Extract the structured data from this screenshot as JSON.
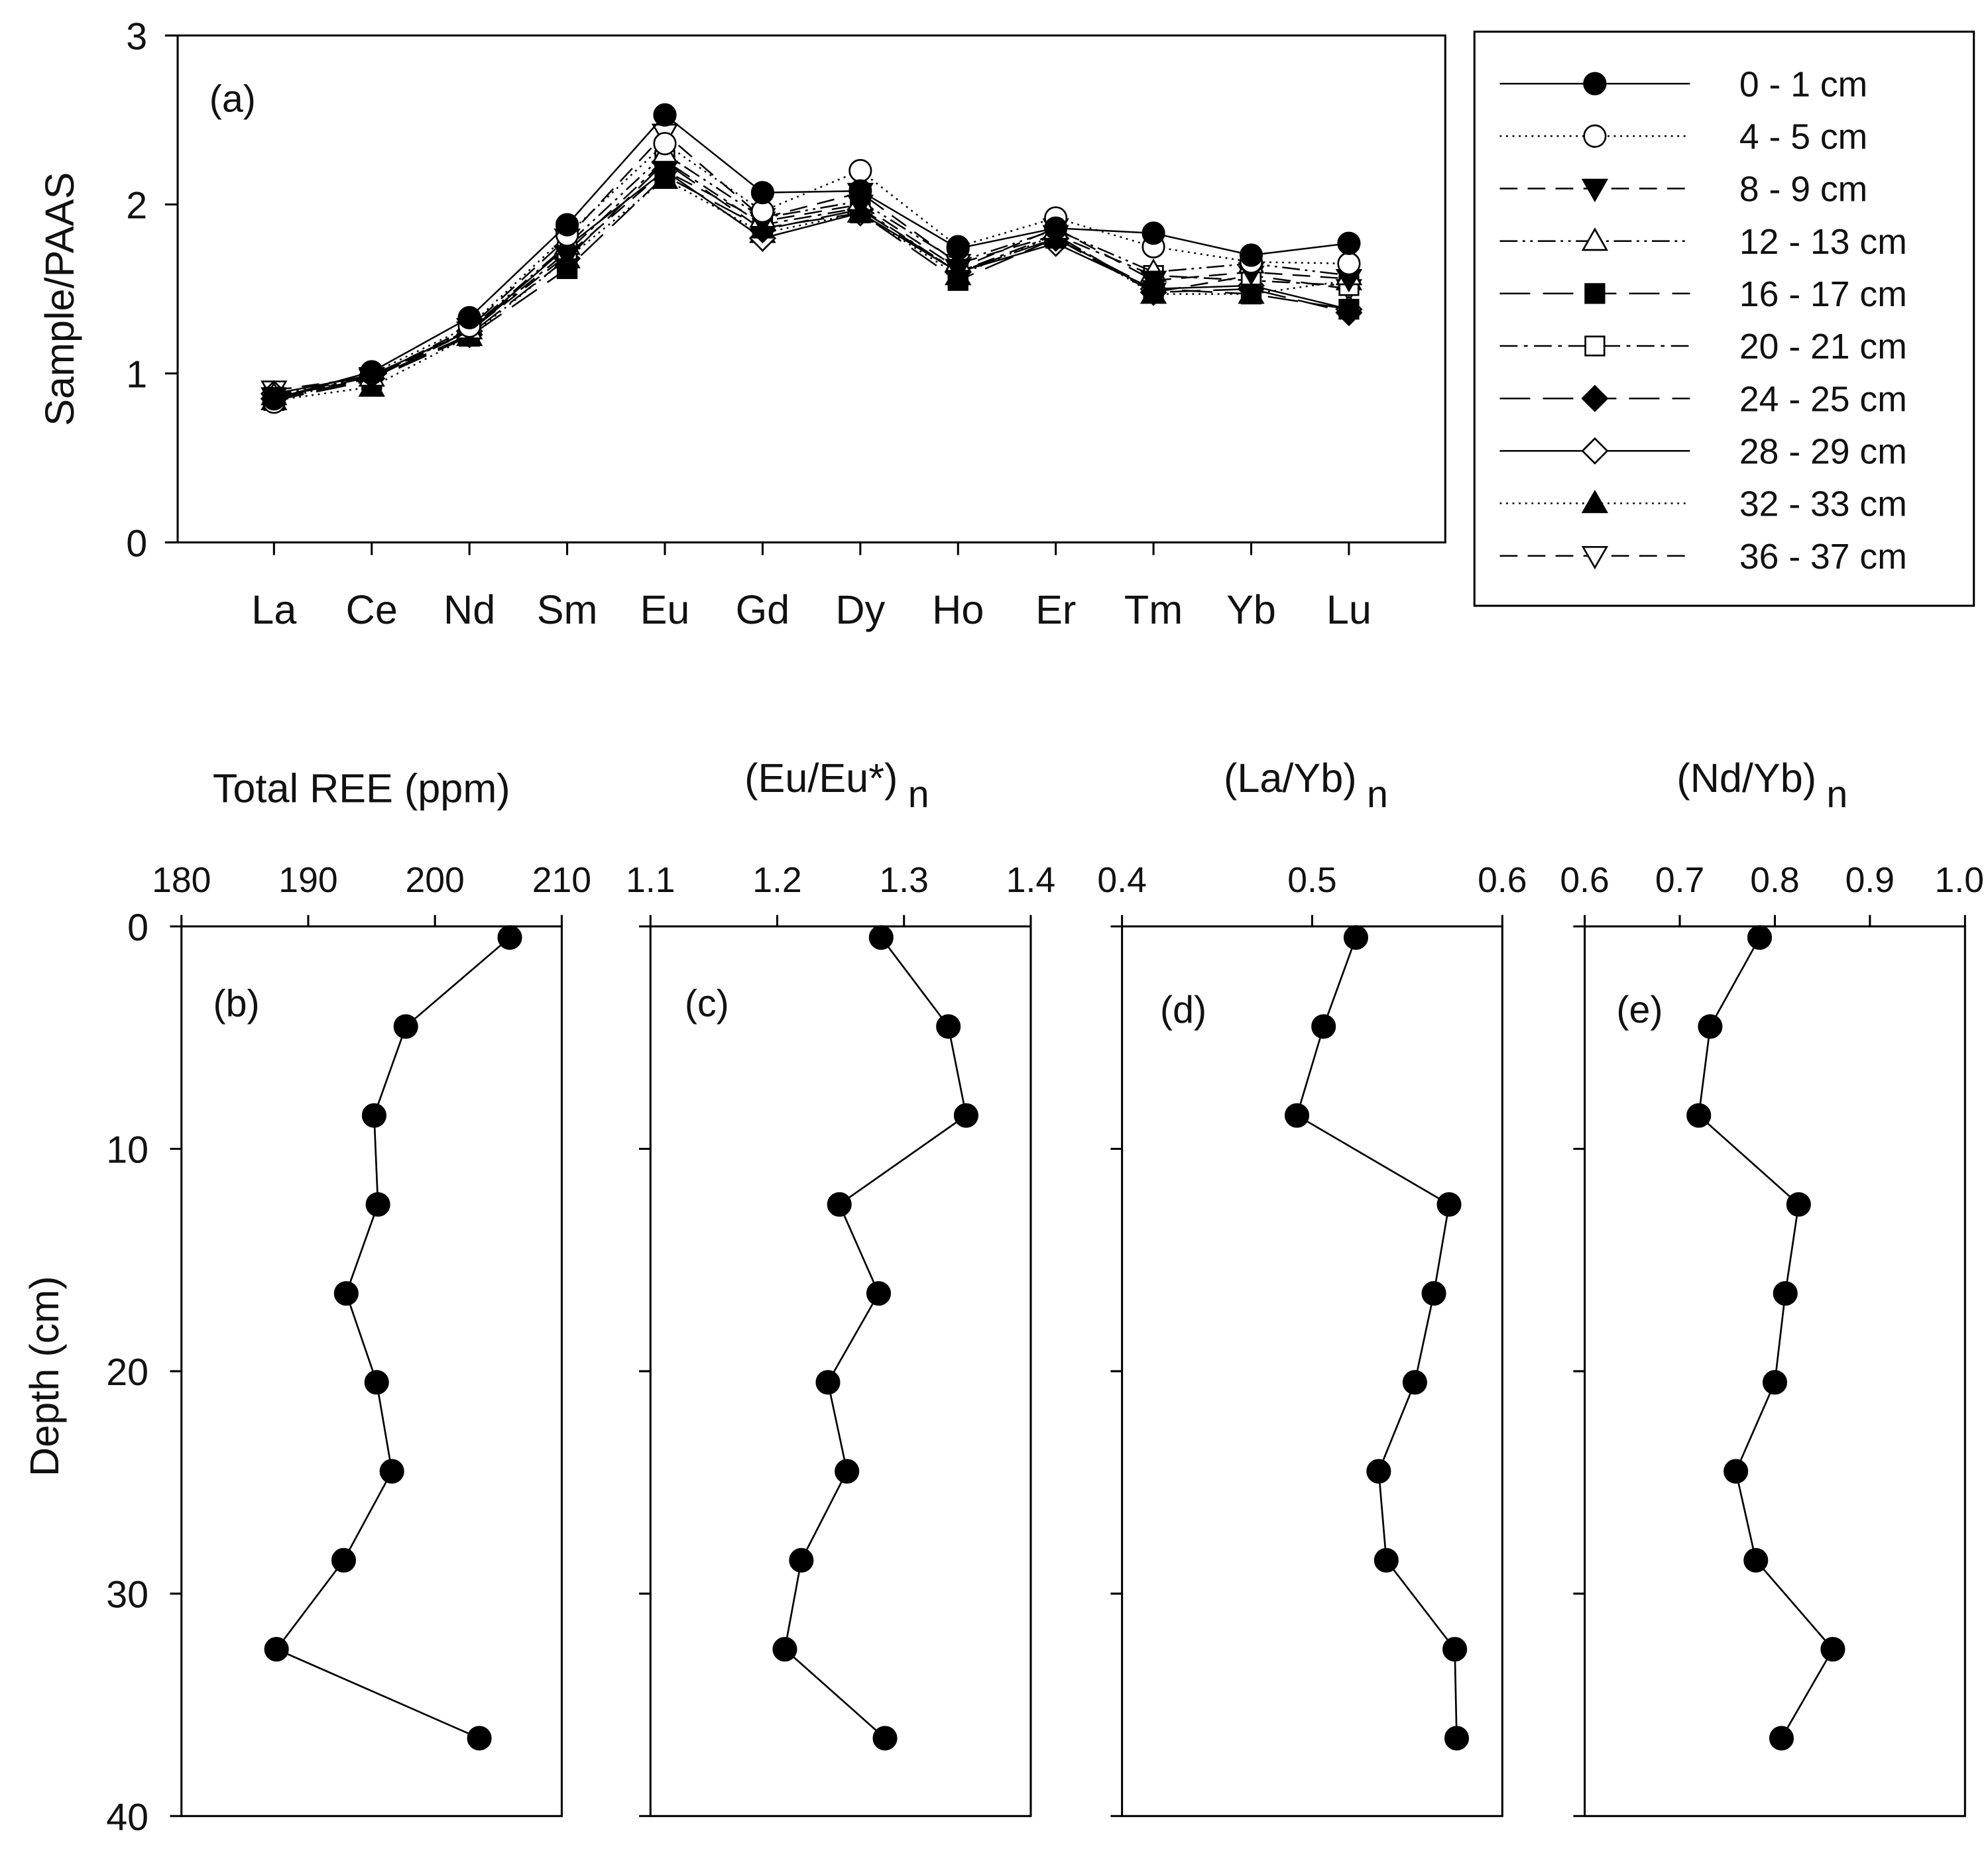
{
  "chart_data": [
    {
      "panel": "(a)",
      "type": "line",
      "categories": [
        "La",
        "Ce",
        "Nd",
        "Sm",
        "Eu",
        "Gd",
        "Dy",
        "Ho",
        "Er",
        "Tm",
        "Yb",
        "Lu"
      ],
      "ylabel": "Sample/PAAS",
      "ylim": [
        0,
        3
      ],
      "yticks": [
        "0",
        "1",
        "2",
        "3"
      ],
      "series": [
        {
          "name": "0 - 1 cm",
          "values": [
            0.85,
            1.01,
            1.33,
            1.88,
            2.53,
            2.07,
            2.08,
            1.74,
            1.86,
            1.83,
            1.7,
            1.77
          ]
        },
        {
          "name": "4 - 5 cm",
          "values": [
            0.83,
            1.0,
            1.28,
            1.82,
            2.36,
            1.96,
            2.2,
            1.75,
            1.92,
            1.75,
            1.66,
            1.65
          ]
        },
        {
          "name": "8 - 9 cm",
          "values": [
            0.86,
            0.97,
            1.25,
            1.7,
            2.2,
            1.9,
            2.0,
            1.62,
            1.86,
            1.55,
            1.6,
            1.56
          ]
        },
        {
          "name": "12 - 13 cm",
          "values": [
            0.87,
            0.98,
            1.26,
            1.76,
            2.3,
            1.92,
            2.02,
            1.66,
            1.85,
            1.6,
            1.65,
            1.58
          ]
        },
        {
          "name": "16 - 17 cm",
          "values": [
            0.84,
            0.96,
            1.22,
            1.62,
            2.17,
            1.86,
            1.95,
            1.55,
            1.8,
            1.5,
            1.47,
            1.38
          ]
        },
        {
          "name": "20 - 21 cm",
          "values": [
            0.86,
            0.98,
            1.25,
            1.72,
            2.26,
            1.88,
            1.98,
            1.6,
            1.82,
            1.58,
            1.55,
            1.52
          ]
        },
        {
          "name": "24 - 25 cm",
          "values": [
            0.85,
            0.97,
            1.23,
            1.68,
            2.25,
            1.85,
            1.97,
            1.6,
            1.8,
            1.48,
            1.5,
            1.36
          ]
        },
        {
          "name": "28 - 29 cm",
          "values": [
            0.88,
            0.99,
            1.25,
            1.75,
            2.2,
            1.8,
            1.95,
            1.6,
            1.77,
            1.5,
            1.52,
            1.38
          ]
        },
        {
          "name": "32 - 33 cm",
          "values": [
            0.84,
            0.92,
            1.22,
            1.68,
            2.15,
            1.83,
            1.95,
            1.58,
            1.82,
            1.47,
            1.47,
            1.55
          ]
        },
        {
          "name": "36 - 37 cm",
          "values": [
            0.9,
            0.98,
            1.27,
            1.8,
            2.42,
            1.92,
            2.07,
            1.65,
            1.82,
            1.48,
            1.58,
            1.5
          ]
        }
      ]
    },
    {
      "panel": "(b)",
      "type": "line",
      "title": "Total REE (ppm)",
      "xlim": [
        180,
        210
      ],
      "xticks": [
        "180",
        "190",
        "200",
        "210"
      ],
      "ylabel": "Depth (cm)",
      "ylim": [
        0,
        40
      ],
      "yticks": [
        "0",
        "10",
        "20",
        "30",
        "40"
      ],
      "depth": [
        0.5,
        4.5,
        8.5,
        12.5,
        16.5,
        20.5,
        24.5,
        28.5,
        32.5,
        36.5
      ],
      "values": [
        205.9,
        197.7,
        195.2,
        195.5,
        193.0,
        195.4,
        196.6,
        192.8,
        187.5,
        203.5
      ]
    },
    {
      "panel": "(c)",
      "type": "line",
      "title": "(Eu/Eu*)",
      "title_subscript": "n",
      "xlim": [
        1.1,
        1.4
      ],
      "xticks": [
        "1.1",
        "1.2",
        "1.3",
        "1.4"
      ],
      "ylim": [
        0,
        40
      ],
      "depth": [
        0.5,
        4.5,
        8.5,
        12.5,
        16.5,
        20.5,
        24.5,
        28.5,
        32.5,
        36.5
      ],
      "values": [
        1.282,
        1.335,
        1.349,
        1.249,
        1.28,
        1.24,
        1.255,
        1.219,
        1.206,
        1.285
      ]
    },
    {
      "panel": "(d)",
      "type": "line",
      "title": "(La/Yb)",
      "title_subscript": "n",
      "xlim": [
        0.4,
        0.6
      ],
      "xticks": [
        "0.4",
        "0.5",
        "0.6"
      ],
      "ylim": [
        0,
        40
      ],
      "depth": [
        0.5,
        4.5,
        8.5,
        12.5,
        16.5,
        20.5,
        24.5,
        28.5,
        32.5,
        36.5
      ],
      "values": [
        0.523,
        0.506,
        0.492,
        0.572,
        0.564,
        0.554,
        0.535,
        0.539,
        0.575,
        0.576
      ]
    },
    {
      "panel": "(e)",
      "type": "line",
      "title": "(Nd/Yb)",
      "title_subscript": "n",
      "xlim": [
        0.6,
        1.0
      ],
      "xticks": [
        "0.6",
        "0.7",
        "0.8",
        "0.9",
        "1.0"
      ],
      "ylim": [
        0,
        40
      ],
      "depth": [
        0.5,
        4.5,
        8.5,
        12.5,
        16.5,
        20.5,
        24.5,
        28.5,
        32.5,
        36.5
      ],
      "values": [
        0.784,
        0.732,
        0.72,
        0.825,
        0.811,
        0.8,
        0.759,
        0.78,
        0.861,
        0.807
      ]
    }
  ]
}
